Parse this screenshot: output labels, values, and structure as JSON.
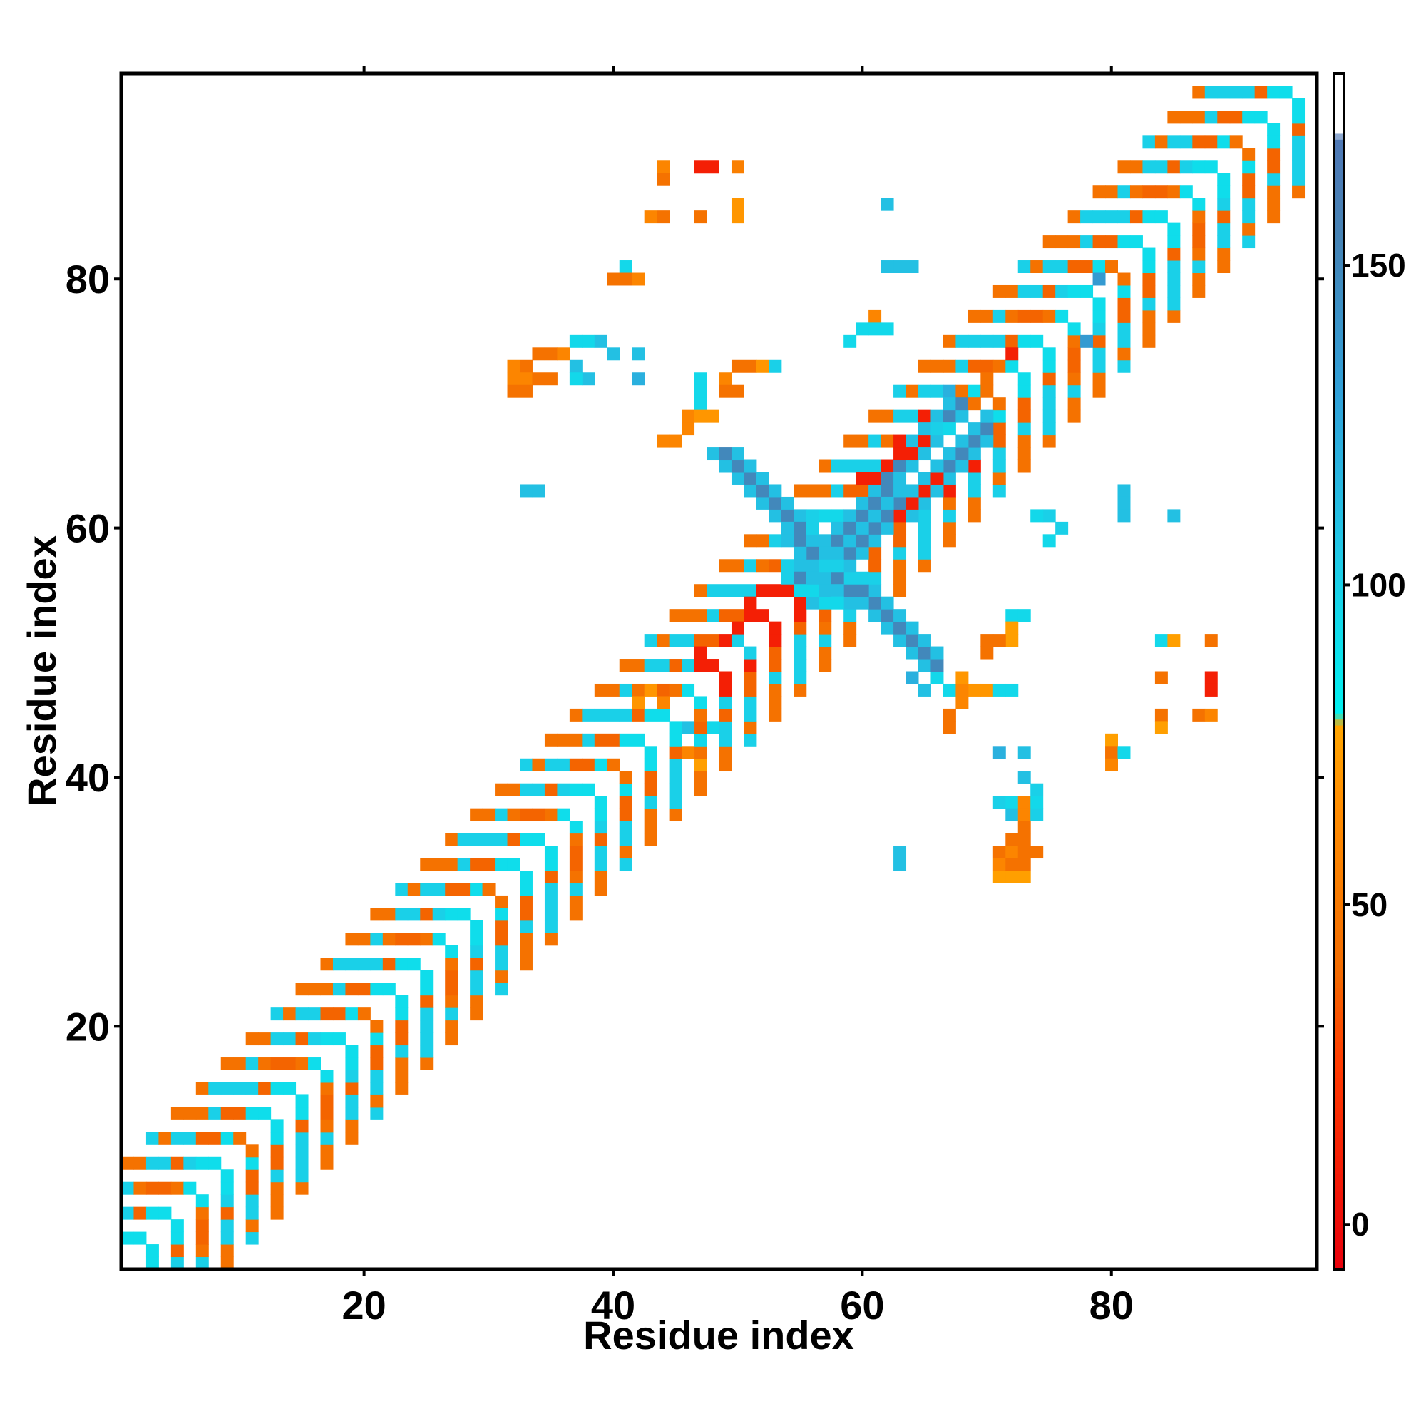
{
  "chart_data": {
    "type": "heatmap",
    "title": "",
    "xlabel": "Residue index",
    "ylabel": "Residue index",
    "xlim": [
      0.5,
      96.5
    ],
    "ylim": [
      0.5,
      96.5
    ],
    "xticks": [
      20,
      40,
      60,
      80
    ],
    "yticks": [
      20,
      40,
      60,
      80
    ],
    "grid": false,
    "colorbar": {
      "range": [
        -7,
        180
      ],
      "ticks": [
        0,
        50,
        100,
        150
      ],
      "stops": [
        {
          "value": -7,
          "color": "#e8000b"
        },
        {
          "value": 25,
          "color": "#ff3a00"
        },
        {
          "value": 40,
          "color": "#f26b00"
        },
        {
          "value": 65,
          "color": "#ff8c00"
        },
        {
          "value": 78,
          "color": "#ffa500"
        },
        {
          "value": 80,
          "color": "#00f0f0"
        },
        {
          "value": 105,
          "color": "#20c8e6"
        },
        {
          "value": 130,
          "color": "#30a0d8"
        },
        {
          "value": 155,
          "color": "#4682b4"
        },
        {
          "value": 170,
          "color": "#4f78b5"
        },
        {
          "value": 170.5,
          "color": "#ffffff"
        },
        {
          "value": 180,
          "color": "#ffffff"
        }
      ]
    },
    "band_cells": [
      {
        "d1": 1,
        "d2": 2,
        "value": 92
      },
      {
        "d1": 3,
        "d2": 4,
        "value": 38
      },
      {
        "d1": 5,
        "d2": 6,
        "value": 100
      },
      {
        "d1": 7,
        "d2": 8,
        "value": 45
      }
    ],
    "cross_cells": {
      "arm_a": {
        "from": [
          54,
          56
        ],
        "to": [
          67,
          70
        ],
        "value": 150
      },
      "arm_b": {
        "from": [
          59,
          54
        ],
        "to": [
          48,
          66
        ],
        "value": 150
      }
    },
    "cells": [
      [
        47,
        89,
        10
      ],
      [
        48,
        89,
        10
      ],
      [
        44,
        89,
        60
      ],
      [
        50,
        89,
        55
      ],
      [
        44,
        88,
        45
      ],
      [
        43,
        85,
        60
      ],
      [
        44,
        85,
        45
      ],
      [
        47,
        85,
        45
      ],
      [
        50,
        85,
        70
      ],
      [
        50,
        86,
        70
      ],
      [
        41,
        81,
        95
      ],
      [
        40,
        80,
        45
      ],
      [
        41,
        80,
        45
      ],
      [
        42,
        80,
        60
      ],
      [
        62,
        86,
        110
      ],
      [
        62,
        81,
        110
      ],
      [
        63,
        81,
        110
      ],
      [
        64,
        81,
        110
      ],
      [
        32,
        73,
        60
      ],
      [
        33,
        73,
        45
      ],
      [
        34,
        74,
        45
      ],
      [
        35,
        74,
        45
      ],
      [
        36,
        74,
        60
      ],
      [
        32,
        72,
        60
      ],
      [
        33,
        72,
        60
      ],
      [
        34,
        72,
        45
      ],
      [
        35,
        72,
        45
      ],
      [
        32,
        71,
        45
      ],
      [
        33,
        71,
        45
      ],
      [
        37,
        75,
        95
      ],
      [
        38,
        75,
        95
      ],
      [
        39,
        75,
        110
      ],
      [
        37,
        73,
        110
      ],
      [
        38,
        72,
        110
      ],
      [
        37,
        72,
        95
      ],
      [
        40,
        74,
        110
      ],
      [
        42,
        74,
        110
      ],
      [
        42,
        72,
        120
      ],
      [
        47,
        72,
        95
      ],
      [
        47,
        71,
        95
      ],
      [
        47,
        70,
        95
      ],
      [
        46,
        69,
        60
      ],
      [
        47,
        69,
        70
      ],
      [
        48,
        69,
        70
      ],
      [
        50,
        73,
        45
      ],
      [
        51,
        73,
        45
      ],
      [
        52,
        73,
        70
      ],
      [
        49,
        72,
        60
      ],
      [
        50,
        71,
        45
      ],
      [
        49,
        71,
        45
      ],
      [
        44,
        67,
        60
      ],
      [
        45,
        67,
        60
      ],
      [
        46,
        68,
        60
      ],
      [
        53,
        73,
        100
      ],
      [
        33,
        63,
        110
      ],
      [
        34,
        63,
        110
      ],
      [
        79,
        80,
        135
      ],
      [
        78,
        75,
        135
      ],
      [
        81,
        63,
        110
      ],
      [
        81,
        62,
        110
      ],
      [
        81,
        61,
        110
      ],
      [
        85,
        61,
        110
      ],
      [
        76,
        60,
        60
      ],
      [
        72,
        53,
        95
      ],
      [
        72,
        52,
        75
      ],
      [
        72,
        51,
        75
      ],
      [
        71,
        51,
        45
      ],
      [
        70,
        51,
        45
      ],
      [
        70,
        50,
        45
      ],
      [
        69,
        47,
        70
      ],
      [
        70,
        47,
        70
      ],
      [
        71,
        47,
        95
      ],
      [
        72,
        47,
        95
      ],
      [
        68,
        46,
        60
      ],
      [
        67,
        45,
        45
      ],
      [
        67,
        44,
        45
      ],
      [
        84,
        51,
        95
      ],
      [
        85,
        51,
        75
      ],
      [
        88,
        51,
        45
      ],
      [
        84,
        48,
        45
      ],
      [
        88,
        48,
        10
      ],
      [
        88,
        47,
        10
      ],
      [
        84,
        45,
        45
      ],
      [
        84,
        44,
        75
      ],
      [
        87,
        45,
        45
      ],
      [
        88,
        45,
        60
      ],
      [
        80,
        43,
        75
      ],
      [
        80,
        42,
        45
      ],
      [
        81,
        42,
        95
      ],
      [
        80,
        41,
        60
      ],
      [
        71,
        42,
        120
      ],
      [
        73,
        42,
        110
      ],
      [
        73,
        40,
        110
      ],
      [
        71,
        38,
        100
      ],
      [
        72,
        38,
        95
      ],
      [
        73,
        38,
        60
      ],
      [
        74,
        38,
        95
      ],
      [
        74,
        39,
        100
      ],
      [
        72,
        37,
        110
      ],
      [
        73,
        37,
        60
      ],
      [
        74,
        37,
        100
      ],
      [
        73,
        36,
        45
      ],
      [
        72,
        35,
        45
      ],
      [
        73,
        35,
        45
      ],
      [
        71,
        34,
        45
      ],
      [
        72,
        34,
        60
      ],
      [
        73,
        34,
        45
      ],
      [
        74,
        34,
        45
      ],
      [
        71,
        33,
        60
      ],
      [
        72,
        33,
        45
      ],
      [
        73,
        33,
        45
      ],
      [
        71,
        32,
        75
      ],
      [
        72,
        32,
        75
      ],
      [
        73,
        32,
        75
      ],
      [
        63,
        34,
        110
      ],
      [
        63,
        33,
        110
      ],
      [
        46,
        44,
        110
      ],
      [
        47,
        43,
        95
      ],
      [
        48,
        44,
        95
      ],
      [
        46,
        42,
        60
      ],
      [
        47,
        41,
        75
      ],
      [
        44,
        46,
        60
      ],
      [
        43,
        47,
        70
      ],
      [
        42,
        46,
        70
      ],
      [
        50,
        52,
        10
      ],
      [
        51,
        54,
        10
      ],
      [
        52,
        55,
        10
      ],
      [
        53,
        55,
        10
      ],
      [
        48,
        49,
        10
      ],
      [
        47,
        50,
        10
      ],
      [
        60,
        64,
        10
      ],
      [
        61,
        64,
        10
      ],
      [
        62,
        65,
        10
      ],
      [
        63,
        66,
        10
      ],
      [
        64,
        66,
        10
      ],
      [
        65,
        67,
        10
      ],
      [
        64,
        62,
        10
      ],
      [
        65,
        63,
        10
      ],
      [
        66,
        64,
        10
      ],
      [
        63,
        61,
        10
      ],
      [
        57,
        61,
        95
      ],
      [
        58,
        61,
        95
      ],
      [
        56,
        60,
        100
      ],
      [
        57,
        57,
        100
      ],
      [
        58,
        57,
        100
      ],
      [
        59,
        56,
        100
      ],
      [
        60,
        56,
        100
      ],
      [
        54,
        57,
        100
      ],
      [
        54,
        56,
        100
      ],
      [
        55,
        55,
        95
      ],
      [
        56,
        55,
        95
      ],
      [
        57,
        54,
        95
      ],
      [
        58,
        54,
        95
      ],
      [
        67,
        71,
        120
      ],
      [
        68,
        71,
        45
      ],
      [
        69,
        70,
        45
      ],
      [
        70,
        72,
        45
      ],
      [
        71,
        73,
        45
      ],
      [
        72,
        74,
        10
      ],
      [
        66,
        68,
        100
      ],
      [
        67,
        68,
        95
      ],
      [
        61,
        77,
        60
      ],
      [
        60,
        76,
        95
      ],
      [
        59,
        75,
        95
      ],
      [
        61,
        76,
        95
      ],
      [
        62,
        76,
        95
      ],
      [
        76,
        60,
        100
      ],
      [
        75,
        59,
        95
      ],
      [
        75,
        61,
        100
      ],
      [
        74,
        61,
        95
      ],
      [
        73,
        53,
        95
      ],
      [
        64,
        48,
        120
      ],
      [
        66,
        48,
        95
      ],
      [
        67,
        47,
        95
      ],
      [
        65,
        47,
        110
      ],
      [
        68,
        48,
        70
      ],
      [
        68,
        47,
        60
      ]
    ]
  }
}
